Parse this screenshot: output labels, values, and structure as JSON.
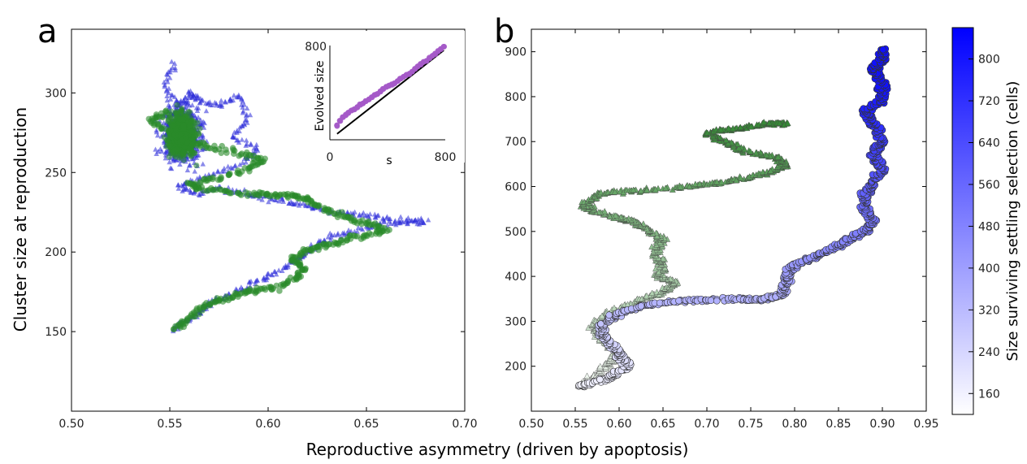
{
  "figure": {
    "shared_xlabel": "Reproductive asymmetry (driven by apoptosis)"
  },
  "chart_data": [
    {
      "panel": "a",
      "type": "scatter",
      "title": "",
      "xlabel": "",
      "ylabel": "Cluster size at reproduction",
      "xlim": [
        0.5,
        0.7
      ],
      "ylim": [
        100,
        340
      ],
      "xticks": [
        "0.50",
        "0.55",
        "0.60",
        "0.65",
        "0.70"
      ],
      "yticks": [
        "150",
        "200",
        "250",
        "300"
      ],
      "grid": false,
      "series": [
        {
          "marker": "triangle",
          "color": "#2a2ad8",
          "trajectory": [
            [
              0.552,
              318
            ],
            [
              0.548,
              305
            ],
            [
              0.555,
              290
            ],
            [
              0.56,
              300
            ],
            [
              0.565,
              295
            ],
            [
              0.575,
              292
            ],
            [
              0.585,
              298
            ],
            [
              0.59,
              284
            ],
            [
              0.582,
              272
            ],
            [
              0.595,
              265
            ],
            [
              0.585,
              255
            ],
            [
              0.57,
              248
            ],
            [
              0.555,
              242
            ],
            [
              0.562,
              237
            ],
            [
              0.575,
              240
            ],
            [
              0.59,
              236
            ],
            [
              0.6,
              234
            ],
            [
              0.612,
              231
            ],
            [
              0.622,
              228
            ],
            [
              0.635,
              225
            ],
            [
              0.648,
              223
            ],
            [
              0.66,
              221
            ],
            [
              0.672,
              220
            ],
            [
              0.68,
              219
            ],
            [
              0.66,
              218
            ],
            [
              0.645,
              214
            ],
            [
              0.632,
              210
            ],
            [
              0.625,
              204
            ],
            [
              0.618,
              198
            ],
            [
              0.612,
              193
            ],
            [
              0.602,
              186
            ],
            [
              0.592,
              180
            ],
            [
              0.58,
              173
            ],
            [
              0.57,
              168
            ],
            [
              0.565,
              162
            ],
            [
              0.558,
              157
            ],
            [
              0.552,
              151
            ]
          ]
        },
        {
          "marker": "circle",
          "color": "#2a8a2a",
          "trajectory": [
            [
              0.548,
              288
            ],
            [
              0.54,
              282
            ],
            [
              0.55,
              276
            ],
            [
              0.56,
              270
            ],
            [
              0.57,
              266
            ],
            [
              0.585,
              262
            ],
            [
              0.598,
              258
            ],
            [
              0.59,
              252
            ],
            [
              0.575,
              247
            ],
            [
              0.56,
              243
            ],
            [
              0.565,
              240
            ],
            [
              0.58,
              238
            ],
            [
              0.595,
              236
            ],
            [
              0.605,
              236
            ],
            [
              0.615,
              235
            ],
            [
              0.622,
              232
            ],
            [
              0.63,
              226
            ],
            [
              0.64,
              222
            ],
            [
              0.65,
              218
            ],
            [
              0.66,
              214
            ],
            [
              0.65,
              211
            ],
            [
              0.638,
              207
            ],
            [
              0.628,
              204
            ],
            [
              0.62,
              201
            ],
            [
              0.612,
              196
            ],
            [
              0.618,
              190
            ],
            [
              0.615,
              184
            ],
            [
              0.605,
              178
            ],
            [
              0.594,
              176
            ],
            [
              0.585,
              173
            ],
            [
              0.575,
              170
            ],
            [
              0.566,
              165
            ],
            [
              0.56,
              158
            ],
            [
              0.553,
              152
            ]
          ]
        }
      ],
      "inset": {
        "type": "scatter",
        "xlabel": "s",
        "ylabel": "Evolved size",
        "xlim": [
          0,
          800
        ],
        "ylim": [
          0,
          800
        ],
        "xticks": [
          "0",
          "800"
        ],
        "yticks": [
          "800"
        ],
        "marker_color": "#a459c8",
        "reference_line": [
          [
            50,
            50
          ],
          [
            790,
            760
          ]
        ],
        "points": [
          [
            50,
            120
          ],
          [
            70,
            160
          ],
          [
            90,
            190
          ],
          [
            110,
            210
          ],
          [
            130,
            230
          ],
          [
            150,
            250
          ],
          [
            170,
            260
          ],
          [
            190,
            280
          ],
          [
            210,
            300
          ],
          [
            230,
            310
          ],
          [
            250,
            330
          ],
          [
            270,
            340
          ],
          [
            290,
            360
          ],
          [
            310,
            380
          ],
          [
            330,
            390
          ],
          [
            350,
            410
          ],
          [
            370,
            430
          ],
          [
            390,
            450
          ],
          [
            410,
            460
          ],
          [
            430,
            470
          ],
          [
            450,
            480
          ],
          [
            470,
            500
          ],
          [
            490,
            520
          ],
          [
            510,
            530
          ],
          [
            530,
            550
          ],
          [
            550,
            560
          ],
          [
            570,
            580
          ],
          [
            590,
            600
          ],
          [
            610,
            620
          ],
          [
            630,
            640
          ],
          [
            650,
            660
          ],
          [
            670,
            670
          ],
          [
            690,
            690
          ],
          [
            710,
            710
          ],
          [
            730,
            730
          ],
          [
            750,
            750
          ],
          [
            770,
            770
          ],
          [
            790,
            790
          ]
        ]
      }
    },
    {
      "panel": "b",
      "type": "scatter",
      "title": "",
      "xlabel": "",
      "ylabel": "",
      "xlim": [
        0.5,
        0.95
      ],
      "ylim": [
        100,
        950
      ],
      "xticks": [
        "0.50",
        "0.55",
        "0.60",
        "0.65",
        "0.70",
        "0.75",
        "0.80",
        "0.85",
        "0.90",
        "0.95"
      ],
      "yticks": [
        "200",
        "300",
        "400",
        "500",
        "600",
        "700",
        "800",
        "900"
      ],
      "grid": false,
      "series": [
        {
          "marker": "triangle",
          "colormap": "green",
          "trajectory": [
            [
              0.555,
              155
            ],
            [
              0.575,
              180
            ],
            [
              0.59,
              210
            ],
            [
              0.6,
              230
            ],
            [
              0.58,
              260
            ],
            [
              0.57,
              290
            ],
            [
              0.59,
              320
            ],
            [
              0.62,
              345
            ],
            [
              0.65,
              365
            ],
            [
              0.665,
              385
            ],
            [
              0.645,
              400
            ],
            [
              0.65,
              420
            ],
            [
              0.64,
              450
            ],
            [
              0.65,
              480
            ],
            [
              0.635,
              500
            ],
            [
              0.62,
              520
            ],
            [
              0.6,
              530
            ],
            [
              0.57,
              545
            ],
            [
              0.56,
              560
            ],
            [
              0.58,
              585
            ],
            [
              0.62,
              590
            ],
            [
              0.68,
              600
            ],
            [
              0.72,
              610
            ],
            [
              0.76,
              625
            ],
            [
              0.79,
              645
            ],
            [
              0.78,
              665
            ],
            [
              0.74,
              680
            ],
            [
              0.72,
              700
            ],
            [
              0.7,
              720
            ],
            [
              0.74,
              730
            ],
            [
              0.77,
              740
            ],
            [
              0.79,
              740
            ]
          ]
        },
        {
          "marker": "circle",
          "colormap": "blue",
          "trajectory": [
            [
              0.555,
              155
            ],
            [
              0.59,
              175
            ],
            [
              0.61,
              200
            ],
            [
              0.6,
              230
            ],
            [
              0.585,
              260
            ],
            [
              0.58,
              290
            ],
            [
              0.6,
              320
            ],
            [
              0.64,
              340
            ],
            [
              0.69,
              348
            ],
            [
              0.74,
              350
            ],
            [
              0.765,
              348
            ],
            [
              0.785,
              360
            ],
            [
              0.79,
              390
            ],
            [
              0.795,
              420
            ],
            [
              0.82,
              440
            ],
            [
              0.84,
              460
            ],
            [
              0.86,
              480
            ],
            [
              0.88,
              500
            ],
            [
              0.89,
              520
            ],
            [
              0.88,
              550
            ],
            [
              0.88,
              580
            ],
            [
              0.89,
              610
            ],
            [
              0.9,
              640
            ],
            [
              0.89,
              670
            ],
            [
              0.9,
              700
            ],
            [
              0.89,
              740
            ],
            [
              0.88,
              770
            ],
            [
              0.9,
              790
            ],
            [
              0.9,
              830
            ],
            [
              0.89,
              860
            ],
            [
              0.9,
              880
            ],
            [
              0.9,
              905
            ]
          ]
        }
      ]
    }
  ],
  "colorbar": {
    "label": "Size surviving settling selection (cells)",
    "min": 120,
    "max": 860,
    "ticks": [
      "160",
      "240",
      "320",
      "400",
      "480",
      "560",
      "640",
      "720",
      "800"
    ],
    "color_low": "#ffffff",
    "color_high": "#0000ff"
  },
  "panels": {
    "a": "a",
    "b": "b"
  }
}
